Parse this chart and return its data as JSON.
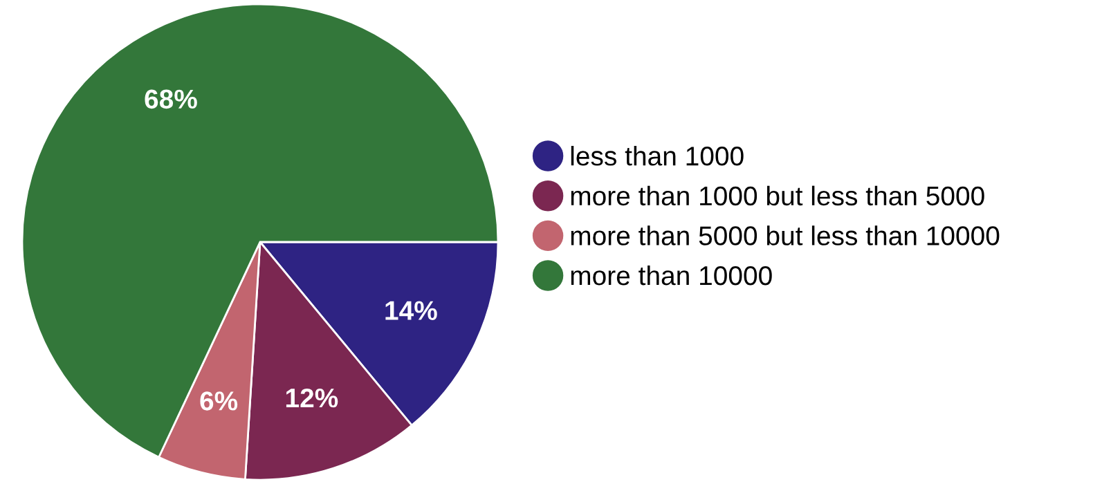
{
  "chart_data": {
    "type": "pie",
    "categories": [
      "less than 1000",
      "more than 1000 but less than 5000",
      "more than 5000 but less than 10000",
      "more than 10000"
    ],
    "values": [
      14,
      12,
      6,
      68
    ],
    "colors": [
      "#2e2383",
      "#7b2751",
      "#c2656f",
      "#33773a"
    ],
    "value_labels": [
      "14%",
      "12%",
      "6%",
      "68%"
    ],
    "legend": "right"
  }
}
